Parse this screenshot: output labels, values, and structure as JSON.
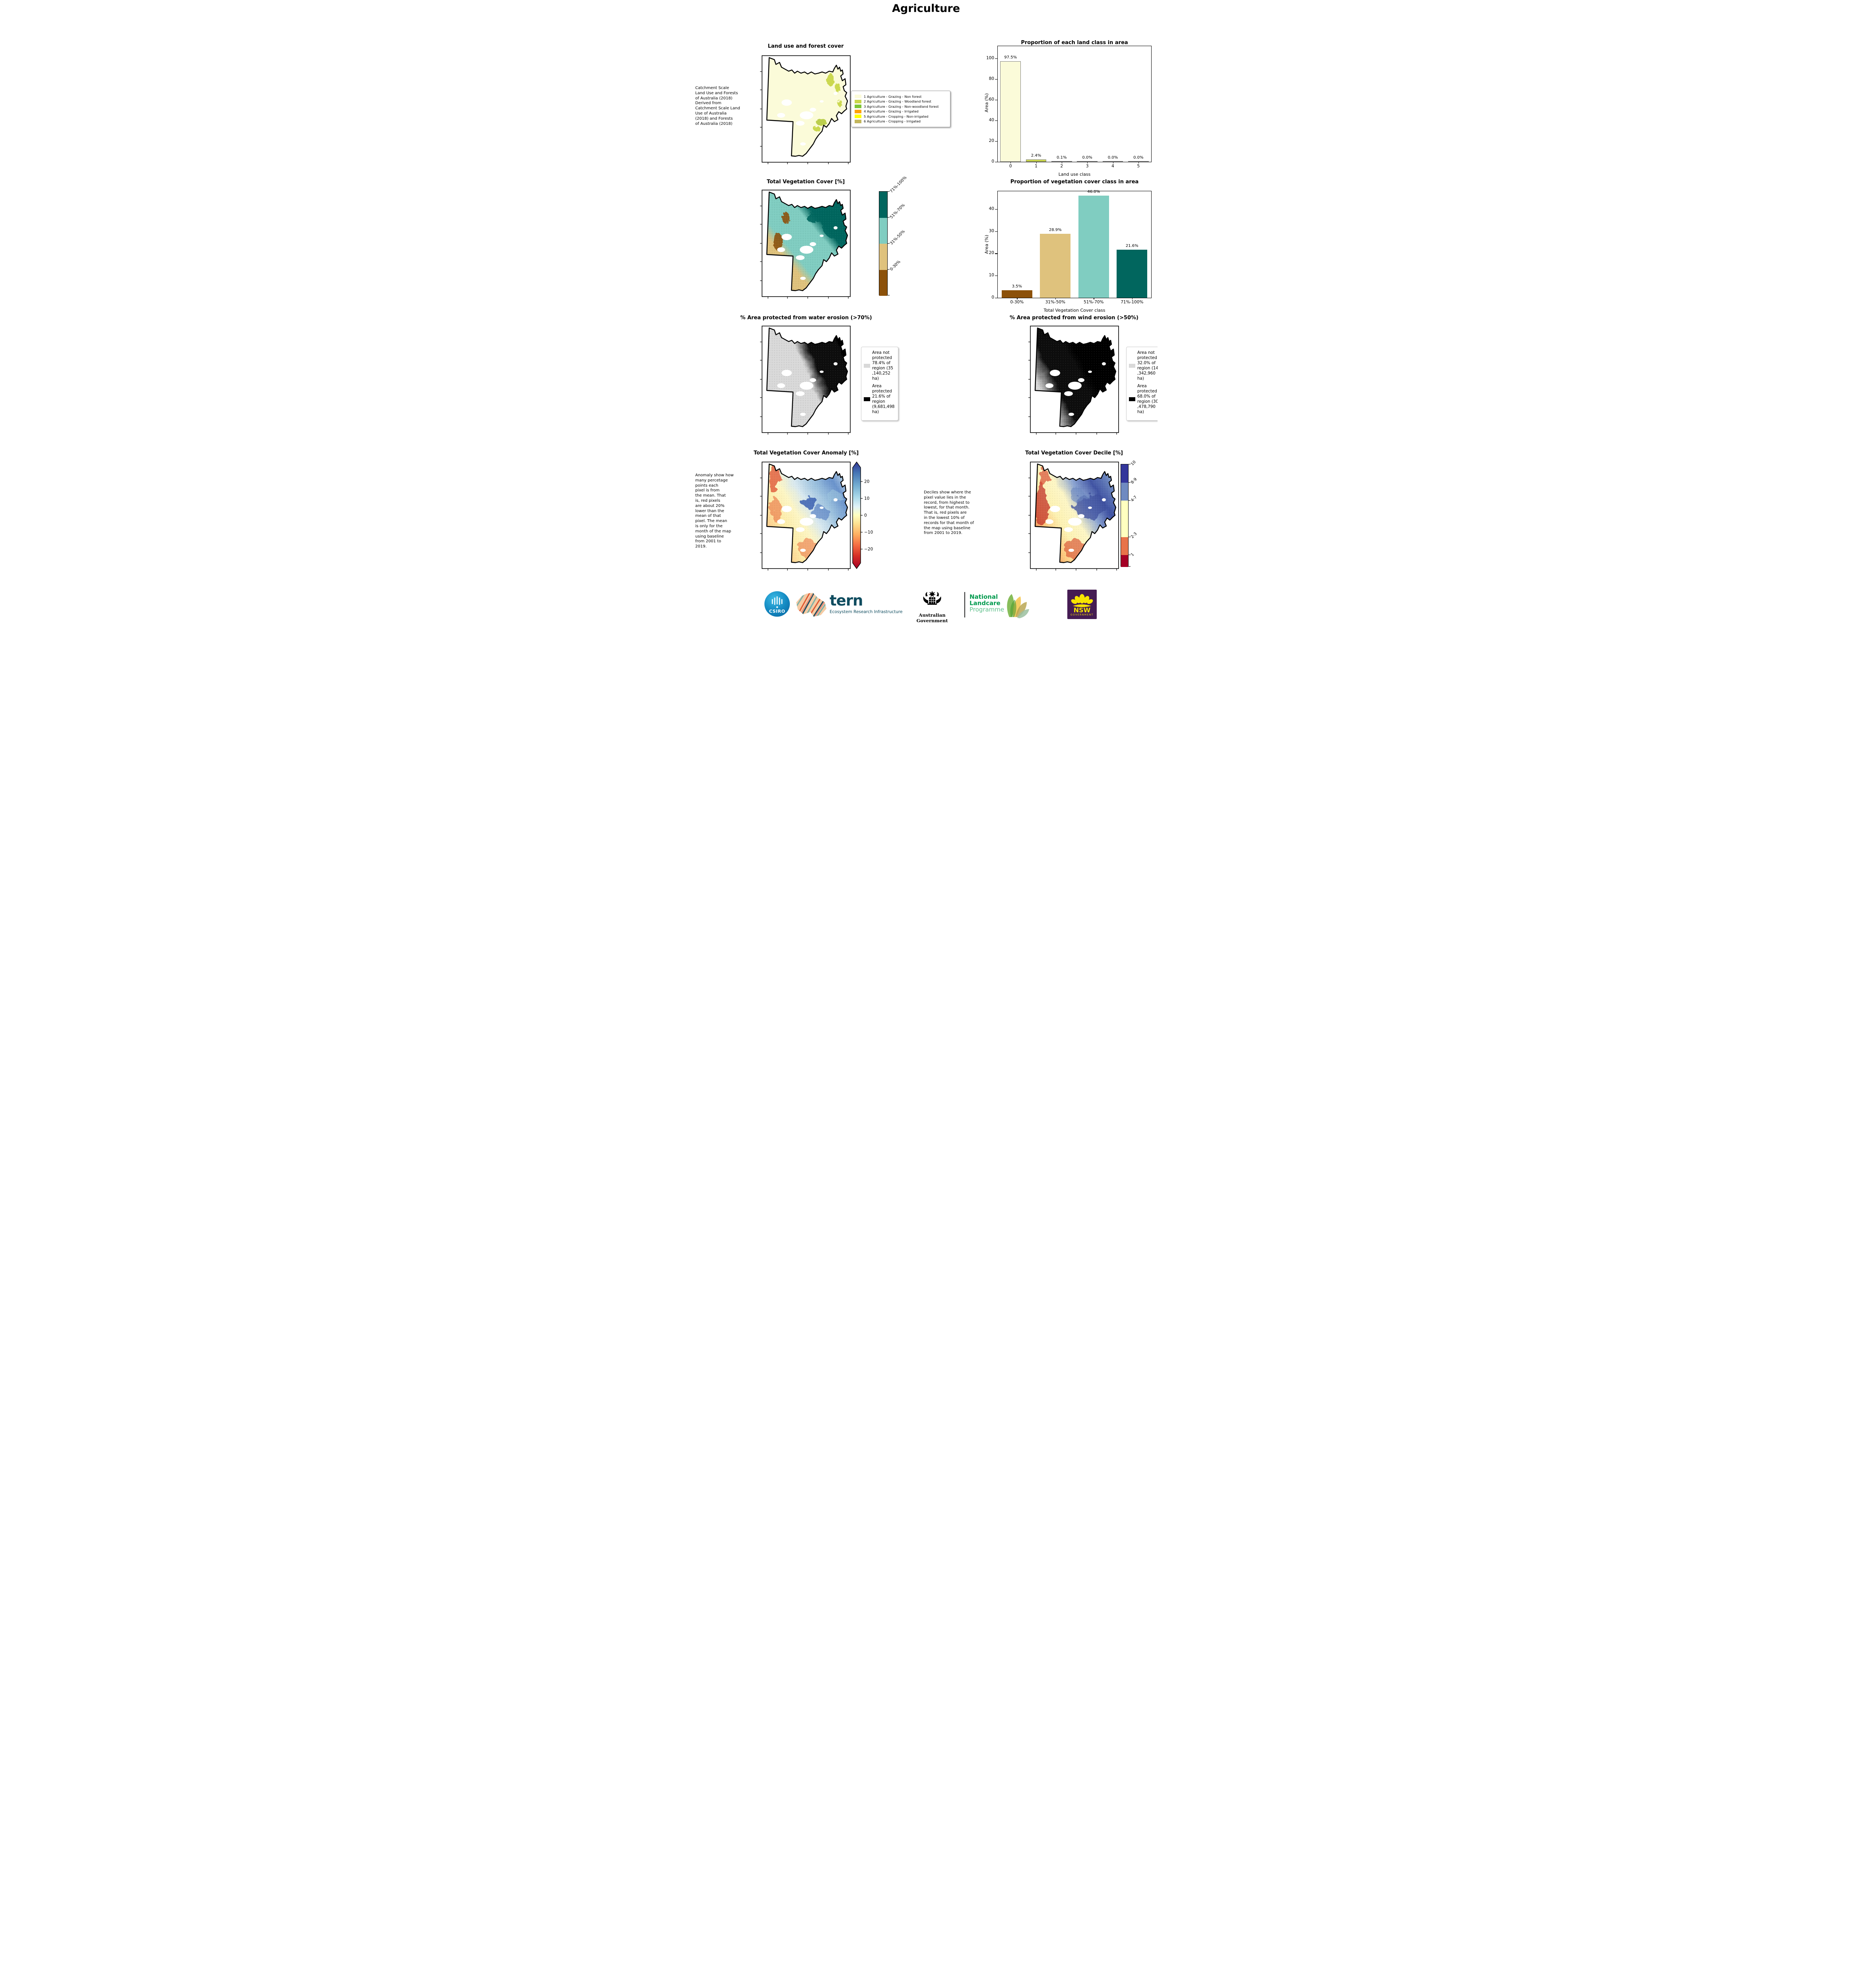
{
  "page_title": "Agriculture",
  "row1": {
    "caption": " Catchment Scale\nLand Use and Forests\nof Australia (2018)\nDerived from\nCatchment Scale Land\nUse of Australia\n(2018) and Forests\nof Australia (2018)",
    "map_title": "Land use and forest cover",
    "legend": {
      "items": [
        {
          "label": "1 Agriculture - Grazing - Non forest",
          "color": "#fbfbd9"
        },
        {
          "label": "2 Agriculture - Grazing - Woodland forest",
          "color": "#c9d64a"
        },
        {
          "label": "3 Agriculture - Grazing - Non-woodland forest",
          "color": "#7fc535"
        },
        {
          "label": "4 Agriculture - Grazing - Irrigated",
          "color": "#ffa200"
        },
        {
          "label": "5 Agriculture - Cropping - Non-irrigated",
          "color": "#ffff00"
        },
        {
          "label": "6 Agriculture - Cropping - Irrigated",
          "color": "#c3b65c"
        }
      ]
    }
  },
  "row2": {
    "map_title": "Total Vegetation Cover [%]",
    "colorbar": {
      "labels": [
        "71%-100%",
        "51%-70%",
        "31%-50%",
        "0-30%"
      ],
      "colors": [
        "#01665e",
        "#80cdc1",
        "#dfc27d",
        "#8c510a"
      ]
    }
  },
  "row3": {
    "left": {
      "map_title": "% Area protected from water erosion (>70%)",
      "legend": [
        {
          "label": "Area not\nprotected\n78.4% of\nregion (35\n,140,252\nha)",
          "color": "#d9d9d9"
        },
        {
          "label": "Area\nprotected\n21.6% of\nregion\n(9,681,498\nha)",
          "color": "#000000"
        }
      ]
    },
    "right": {
      "map_title": "% Area protected from wind erosion (>50%)",
      "legend": [
        {
          "label": "Area not\nprotected\n32.0% of\nregion (14\n,342,960\nha)",
          "color": "#d9d9d9"
        },
        {
          "label": "Area\nprotected\n68.0% of\nregion (30\n,478,790\nha)",
          "color": "#000000"
        }
      ]
    }
  },
  "row4": {
    "left": {
      "caption": "Anomaly show how\nmany percetage\npoints each\npixel is from\nthe mean. That\nis, red pixels\nare about 20%\nlower than the\nmean of that\npixel. The mean\nis only for the\nmonth of the map\nusing baseline\nfrom 2001 to\n2019.",
      "map_title": "Total Vegetation Cover Anomaly [%]",
      "colorbar_ticks": [
        "20",
        "10",
        "0",
        "−10",
        "−20"
      ]
    },
    "right": {
      "caption": "Deciles show where the\npixel value lies in the\nrecord, from highest to\nlowest, for that month.\nThat is, red pixels are\nin the lowest 10% of\nrecords for that month of\nthe map using baseline\nfrom 2001 to 2019.",
      "map_title": "Total Vegetation Cover Decile [%]",
      "colorbar": {
        "labels": [
          "10",
          "8-9",
          "4-7",
          "2-3",
          "1"
        ],
        "colors": [
          "#33369b",
          "#6f8ac1",
          "#ffffc0",
          "#e8734a",
          "#a50026"
        ]
      }
    }
  },
  "logos": {
    "csiro": {
      "label": "CSIRO"
    },
    "tern": {
      "name": "tern",
      "subtitle": "Ecosystem Research Infrastructure"
    },
    "aus_gov": {
      "label": "Australian Government"
    },
    "landcare": {
      "line1": "National",
      "line2": "Landcare",
      "line3": "Programme"
    },
    "nsw": {
      "line1": "NSW",
      "line2": "GOVERNMENT"
    }
  },
  "chart_data": [
    {
      "type": "bar",
      "title": "Proportion of each land class in area",
      "categories": [
        "0",
        "1",
        "2",
        "3",
        "4",
        "5"
      ],
      "values": [
        97.5,
        2.4,
        0.1,
        0.0,
        0.0,
        0.0
      ],
      "labels": [
        "97.5%",
        "2.4%",
        "0.1%",
        "0.0%",
        "0.0%",
        "0.0%"
      ],
      "bar_colors": [
        "#fbfbd9",
        "#c9d64a",
        "#7fc535",
        "#ffa200",
        "#ffff00",
        "#c3b65c"
      ],
      "bar_edge": "#808080",
      "xlabel": "Land use class",
      "ylabel": "Area (%)",
      "yticks": [
        0,
        20,
        40,
        60,
        80,
        100
      ],
      "ylim": [
        0,
        112
      ],
      "grid": false,
      "legend_position": "none"
    },
    {
      "type": "bar",
      "title": "Proportion of vegetation cover class in area",
      "categories": [
        "0-30%",
        "31%-50%",
        "51%-70%",
        "71%-100%"
      ],
      "values": [
        3.5,
        28.9,
        46.0,
        21.6
      ],
      "labels": [
        "3.5%",
        "28.9%",
        "46.0%",
        "21.6%"
      ],
      "bar_colors": [
        "#8c510a",
        "#dfc27d",
        "#80cdc1",
        "#01665e"
      ],
      "xlabel": "Total Vegetation Cover class",
      "ylabel": "Area (%)",
      "yticks": [
        0,
        10,
        20,
        30,
        40
      ],
      "ylim": [
        0,
        48
      ],
      "grid": false,
      "legend_position": "none"
    }
  ]
}
